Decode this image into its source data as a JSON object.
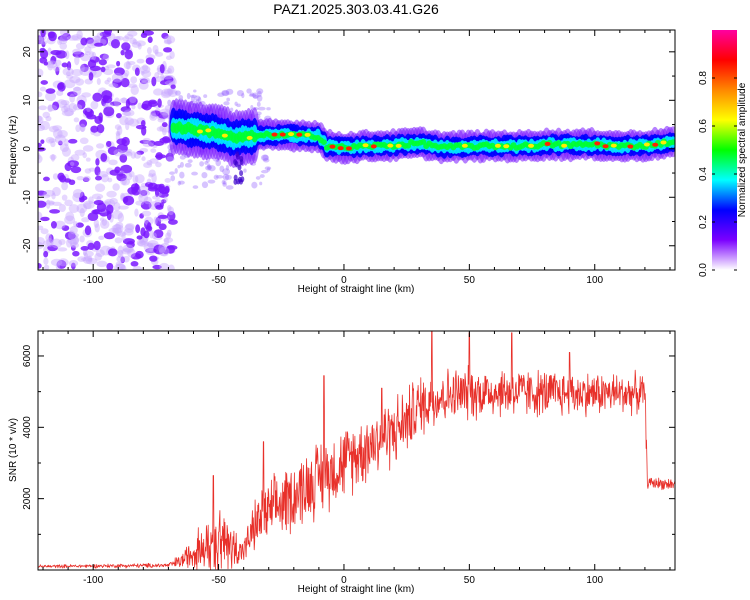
{
  "title": "PAZ1.2025.303.03.41.G26",
  "colors": {
    "snr_line": "#e8302a",
    "signal_low": "#7a18ff",
    "axis": "#000000"
  },
  "chart_data": [
    {
      "type": "heatmap",
      "xlabel": "Height of straight line (km)",
      "ylabel": "Frequency (Hz)",
      "xlim": [
        -122,
        132
      ],
      "ylim": [
        -25,
        24.5
      ],
      "xticks": [
        -100,
        -50,
        0,
        50,
        100
      ],
      "xtick_labels": [
        "-100",
        "-50",
        "0",
        "50",
        "100"
      ],
      "yticks": [
        -20,
        -10,
        0,
        10,
        20
      ],
      "ytick_labels": [
        "-20",
        "-10",
        "0",
        "10",
        "20"
      ],
      "noise_region_x": [
        -122,
        -68
      ],
      "ridge": {
        "x": [
          -68,
          -60,
          -50,
          -44,
          -40,
          -30,
          -20,
          -10,
          -7,
          0,
          10,
          20,
          30,
          40,
          50,
          60,
          70,
          80,
          90,
          100,
          110,
          120,
          132
        ],
        "freq": [
          4.5,
          4,
          3.3,
          2.2,
          2.4,
          2.8,
          2.8,
          2.6,
          0.6,
          0.2,
          0.6,
          0.7,
          1.2,
          0.3,
          0.5,
          0.6,
          0.5,
          0.9,
          0.8,
          0.9,
          0.5,
          0.7,
          1.5
        ]
      },
      "colorbar": {
        "label": "Normalized spectral amplitude",
        "range": [
          0,
          1
        ],
        "ticks": [
          0.0,
          0.2,
          0.4,
          0.6,
          0.8
        ],
        "tick_labels": [
          "0.0",
          "0.2",
          "0.4",
          "0.6",
          "0.8"
        ],
        "colormap": [
          "#ffffff",
          "#7b00ff",
          "#0000ff",
          "#00ffff",
          "#00ff00",
          "#ffff00",
          "#ff8800",
          "#ff0000",
          "#ff00a0"
        ]
      }
    },
    {
      "type": "line",
      "xlabel": "Height of straight line (km)",
      "ylabel": "SNR (10 * v/v)",
      "xlim": [
        -122,
        132
      ],
      "ylim": [
        0,
        6700
      ],
      "xticks": [
        -100,
        -50,
        0,
        50,
        100
      ],
      "xtick_labels": [
        "-100",
        "-50",
        "0",
        "50",
        "100"
      ],
      "yticks": [
        2000,
        4000,
        6000
      ],
      "ytick_labels": [
        "2000",
        "4000",
        "6000"
      ],
      "envelope": {
        "x": [
          -122,
          -70,
          -65,
          -60,
          -50,
          -45,
          -40,
          -35,
          -30,
          -20,
          -10,
          0,
          10,
          20,
          25,
          30,
          40,
          60,
          80,
          100,
          120,
          121,
          132
        ],
        "mean": [
          100,
          130,
          250,
          500,
          800,
          650,
          550,
          1300,
          1600,
          2100,
          2600,
          3000,
          3500,
          3900,
          4200,
          4600,
          4900,
          5000,
          4950,
          4950,
          4950,
          2450,
          2400
        ],
        "spread": [
          40,
          60,
          200,
          400,
          900,
          700,
          300,
          700,
          800,
          900,
          950,
          900,
          900,
          900,
          850,
          800,
          700,
          650,
          600,
          550,
          500,
          150,
          150
        ]
      },
      "peaks": [
        {
          "x": -52,
          "y": 2650
        },
        {
          "x": -32,
          "y": 3600
        },
        {
          "x": -8,
          "y": 5450
        },
        {
          "x": 15,
          "y": 5100
        },
        {
          "x": 35,
          "y": 6700
        },
        {
          "x": 50,
          "y": 6650
        },
        {
          "x": 67,
          "y": 6650
        },
        {
          "x": 90,
          "y": 6100
        }
      ]
    }
  ]
}
